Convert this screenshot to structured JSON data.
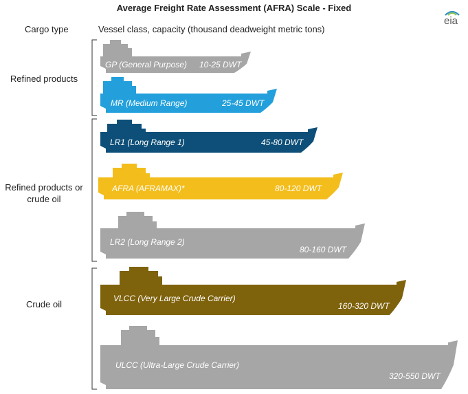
{
  "title": "Average Freight Rate Assessment (AFRA) Scale - Fixed",
  "logo": "eia",
  "headers": {
    "cargo_type": "Cargo type",
    "vessel_class": "Vessel class, capacity (thousand deadweight metric tons)"
  },
  "groups": [
    {
      "label": "Refined products"
    },
    {
      "label": "Refined products or crude oil"
    },
    {
      "label": "Crude oil"
    }
  ],
  "vessels": [
    {
      "name": "GP (General Purpose)",
      "capacity": "10-25 DWT",
      "color": "#a6a6a6",
      "min_dwt": 10,
      "max_dwt": 25
    },
    {
      "name": "MR (Medium Range)",
      "capacity": "25-45 DWT",
      "color": "#23a0db",
      "min_dwt": 25,
      "max_dwt": 45
    },
    {
      "name": "LR1 (Long Range 1)",
      "capacity": "45-80 DWT",
      "color": "#0d4f78",
      "min_dwt": 45,
      "max_dwt": 80
    },
    {
      "name": "AFRA (AFRAMAX)*",
      "capacity": "80-120 DWT",
      "color": "#f3bd1c",
      "min_dwt": 80,
      "max_dwt": 120
    },
    {
      "name": "LR2 (Long Range 2)",
      "capacity": "80-160 DWT",
      "color": "#a6a6a6",
      "min_dwt": 80,
      "max_dwt": 160
    },
    {
      "name": "VLCC (Very Large Crude Carrier)",
      "capacity": "160-320 DWT",
      "color": "#7e620c",
      "min_dwt": 160,
      "max_dwt": 320
    },
    {
      "name": "ULCC (Ultra-Large Crude Carrier)",
      "capacity": "320-550 DWT",
      "color": "#a6a6a6",
      "min_dwt": 320,
      "max_dwt": 550
    }
  ]
}
